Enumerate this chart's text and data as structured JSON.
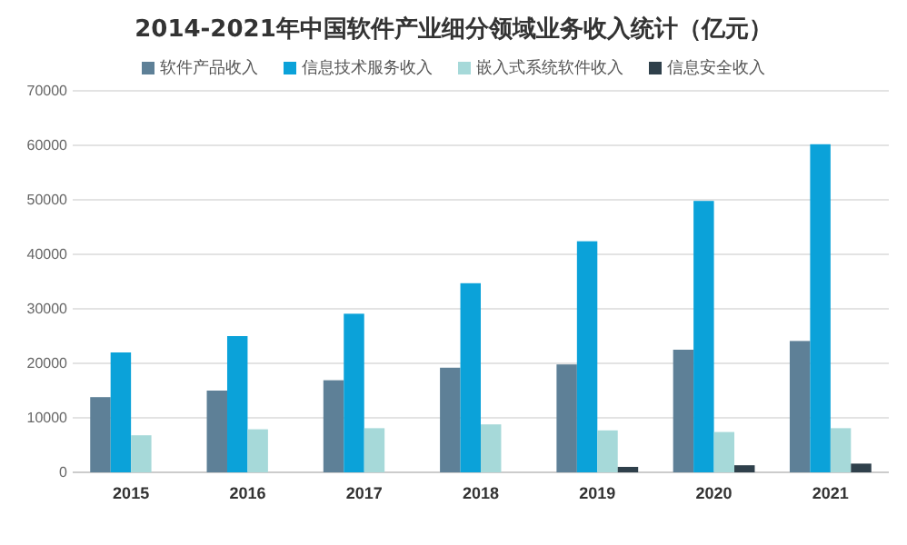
{
  "chart_data": {
    "type": "bar",
    "title": "2014-2021年中国软件产业细分领域业务收入统计（亿元）",
    "categories": [
      "2015",
      "2016",
      "2017",
      "2018",
      "2019",
      "2020",
      "2021"
    ],
    "series": [
      {
        "name": "软件产品收入",
        "color": "#5e8097",
        "values": [
          13800,
          15000,
          16900,
          19200,
          19800,
          22500,
          24100
        ]
      },
      {
        "name": "信息技术服务收入",
        "color": "#0ba2d9",
        "values": [
          22000,
          25000,
          29100,
          34700,
          42400,
          49800,
          60200
        ]
      },
      {
        "name": "嵌入式系统软件收入",
        "color": "#a6d9d9",
        "values": [
          6800,
          7900,
          8100,
          8800,
          7700,
          7400,
          8100
        ]
      },
      {
        "name": "信息安全收入",
        "color": "#2f404b",
        "values": [
          null,
          null,
          null,
          null,
          1000,
          1300,
          1600
        ]
      }
    ],
    "ylim": [
      0,
      70000
    ],
    "yticks": [
      0,
      10000,
      20000,
      30000,
      40000,
      50000,
      60000,
      70000
    ],
    "grid": "y",
    "legend": "top"
  }
}
